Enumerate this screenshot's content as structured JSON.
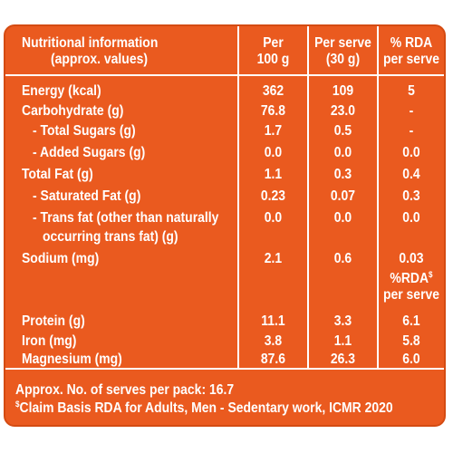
{
  "header": {
    "nutrient_line1": "Nutritional information",
    "nutrient_line2": "(approx. values)",
    "per100_line1": "Per",
    "per100_line2": "100 g",
    "perserve_line1": "Per serve",
    "perserve_line2": "(30 g)",
    "rda_line1": "% RDA",
    "rda_line2": "per serve"
  },
  "rows": [
    {
      "label": "Energy (kcal)",
      "per100": "362",
      "serve": "109",
      "rda": "5"
    },
    {
      "label": "Carbohydrate (g)",
      "per100": "76.8",
      "serve": "23.0",
      "rda": "-"
    },
    {
      "label": "- Total Sugars (g)",
      "per100": "1.7",
      "serve": "0.5",
      "rda": "-"
    },
    {
      "label": "- Added Sugars (g)",
      "per100": "0.0",
      "serve": "0.0",
      "rda": "0.0"
    },
    {
      "label": "Total Fat (g)",
      "per100": "1.1",
      "serve": "0.3",
      "rda": "0.4"
    },
    {
      "label": "- Saturated Fat (g)",
      "per100": "0.23",
      "serve": "0.07",
      "rda": "0.3"
    },
    {
      "label": "- Trans fat (other than naturally",
      "label2": "occurring trans fat) (g)",
      "per100": "0.0",
      "serve": "0.0",
      "rda": "0.0"
    },
    {
      "label": "Sodium (mg)",
      "per100": "2.1",
      "serve": "0.6",
      "rda": "0.03"
    },
    {
      "label": "Protein (g)",
      "per100": "11.1",
      "serve": "3.3",
      "rda": "6.1"
    },
    {
      "label": "Iron (mg)",
      "per100": "3.8",
      "serve": "1.1",
      "rda": "5.8"
    },
    {
      "label": "Magnesium (mg)",
      "per100": "87.6",
      "serve": "26.3",
      "rda": "6.0"
    }
  ],
  "rda2_header": {
    "line1": "%RDA",
    "sup": "$",
    "line2": "per serve"
  },
  "footer": {
    "serves": "Approx. No. of serves per pack: 16.7",
    "claim_sup": "$",
    "claim": "Claim Basis RDA for Adults, Men - Sedentary work, ICMR 2020"
  },
  "colors": {
    "panel": "#ea5a1f",
    "text": "#ffffff"
  }
}
